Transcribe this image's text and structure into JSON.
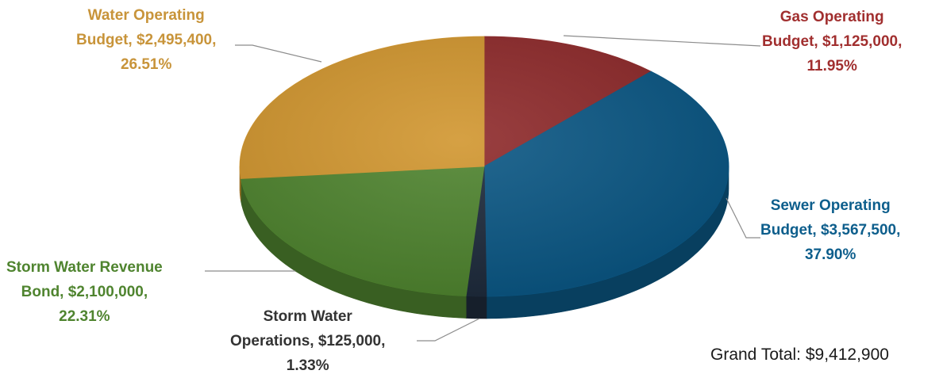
{
  "chart_data": {
    "type": "pie",
    "style": "3d",
    "slices": [
      {
        "label": "Gas Operating Budget",
        "value": 1125000,
        "percent": 11.95,
        "color": "#8E2A2B",
        "label_lines": [
          "Gas Operating",
          "Budget, $1,125,000,",
          "11.95%"
        ]
      },
      {
        "label": "Sewer Operating Budget",
        "value": 3567500,
        "percent": 37.9,
        "color": "#0B5784",
        "label_lines": [
          "Sewer Operating",
          "Budget, $3,567,500,",
          "37.90%"
        ]
      },
      {
        "label": "Storm Water Operations",
        "value": 125000,
        "percent": 1.33,
        "color": "#1E2B3C",
        "label_lines": [
          "Storm Water",
          "Operations, $125,000,",
          "1.33%"
        ]
      },
      {
        "label": "Storm Water Revenue Bond",
        "value": 2100000,
        "percent": 22.31,
        "color": "#4F842F",
        "label_lines": [
          "Storm Water Revenue",
          "Bond, $2,100,000,",
          "22.31%"
        ]
      },
      {
        "label": "Water Operating Budget",
        "value": 2495400,
        "percent": 26.51,
        "color": "#D1962F",
        "label_lines": [
          "Water Operating",
          "Budget, $2,495,400,",
          "26.51%"
        ]
      }
    ],
    "label_colors": [
      "#A12F2F",
      "#0D5E8C",
      "#333333",
      "#4F842F",
      "#C8943A"
    ],
    "grand_total": "Grand Total: $9,412,900"
  }
}
